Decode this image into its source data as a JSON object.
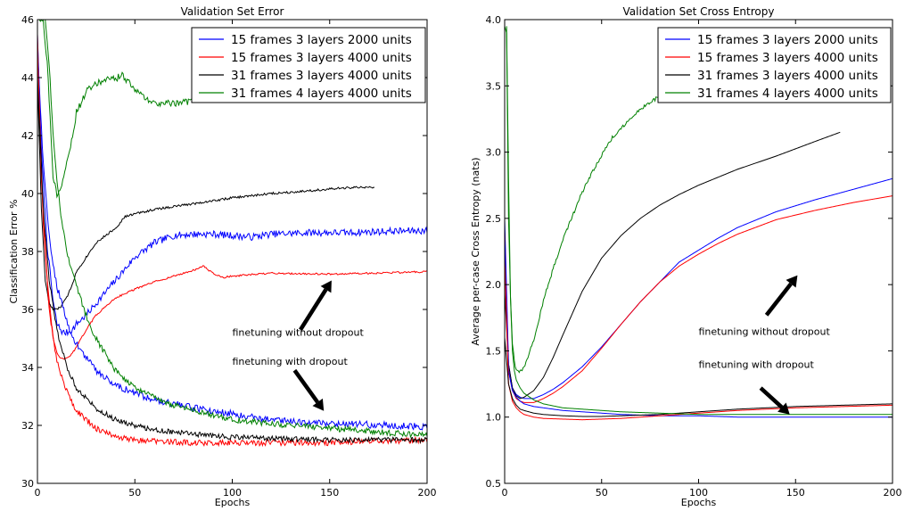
{
  "chart_data": [
    {
      "type": "line",
      "title": "Validation Set Error",
      "xlabel": "Epochs",
      "ylabel": "Classification Error %",
      "xlim": [
        0,
        200
      ],
      "ylim": [
        30,
        46
      ],
      "xticks": [
        "0",
        "50",
        "100",
        "150",
        "200"
      ],
      "yticks": [
        "30",
        "32",
        "34",
        "36",
        "38",
        "40",
        "42",
        "44",
        "46"
      ],
      "grid": false,
      "legend_position": "top-right",
      "series": [
        {
          "name": "15 frames 3 layers 2000 units",
          "color": "#0000ff",
          "noise": 0.12,
          "x": [
            0,
            2,
            5,
            8,
            10,
            13,
            15,
            18,
            20,
            25,
            30,
            40,
            50,
            60,
            70,
            80,
            90,
            100,
            110,
            120,
            140,
            160,
            180,
            200
          ],
          "y": [
            45.5,
            41.5,
            38.2,
            36.3,
            35.5,
            35.2,
            35.2,
            35.3,
            35.5,
            35.8,
            36.2,
            37.0,
            37.8,
            38.3,
            38.55,
            38.6,
            38.6,
            38.55,
            38.5,
            38.6,
            38.65,
            38.65,
            38.7,
            38.72
          ]
        },
        {
          "name": "15 frames 3 layers 4000 units",
          "color": "#ff0000",
          "noise": 0.03,
          "x": [
            0,
            2,
            5,
            8,
            10,
            12,
            15,
            18,
            20,
            25,
            30,
            40,
            50,
            60,
            70,
            80,
            85,
            90,
            95,
            100,
            120,
            150,
            200
          ],
          "y": [
            45.5,
            40.5,
            37.0,
            35.0,
            34.5,
            34.3,
            34.3,
            34.5,
            34.7,
            35.3,
            35.8,
            36.4,
            36.7,
            36.95,
            37.15,
            37.35,
            37.5,
            37.25,
            37.1,
            37.15,
            37.25,
            37.22,
            37.3
          ]
        },
        {
          "name": "31 frames 3 layers 4000 units",
          "color": "#000000",
          "noise": 0.04,
          "x": [
            0,
            2,
            4,
            6,
            8,
            10,
            12,
            15,
            18,
            20,
            25,
            30,
            40,
            45,
            50,
            60,
            70,
            80,
            90,
            100,
            120,
            140,
            160,
            173
          ],
          "y": [
            44.0,
            39.5,
            37.0,
            36.2,
            36.0,
            36.0,
            36.1,
            36.4,
            36.9,
            37.3,
            37.8,
            38.3,
            38.8,
            39.2,
            39.3,
            39.45,
            39.55,
            39.65,
            39.75,
            39.85,
            40.0,
            40.1,
            40.2,
            40.22
          ]
        },
        {
          "name": "31 frames 4 layers 4000 units",
          "color": "#008000",
          "noise": 0.12,
          "x": [
            0,
            3,
            5,
            7,
            8,
            10,
            12,
            15,
            18,
            20,
            25,
            30,
            35,
            40,
            43,
            46,
            50,
            55,
            60,
            65,
            70,
            75,
            80,
            85
          ],
          "y": [
            46.0,
            46.0,
            44.5,
            42.0,
            40.5,
            40.0,
            40.2,
            41.0,
            42.0,
            42.8,
            43.5,
            43.8,
            43.9,
            43.95,
            44.1,
            43.9,
            43.6,
            43.3,
            43.1,
            43.15,
            43.1,
            43.15,
            43.2,
            43.3
          ]
        },
        {
          "name": "",
          "color": "#0000ff",
          "noise": 0.12,
          "x": [
            0,
            3,
            6,
            10,
            15,
            20,
            30,
            40,
            50,
            60,
            70,
            80,
            90,
            100,
            110,
            120,
            140,
            160,
            180,
            200
          ],
          "y": [
            45.0,
            41.0,
            38.5,
            36.8,
            35.6,
            34.8,
            33.9,
            33.4,
            33.1,
            32.9,
            32.75,
            32.6,
            32.5,
            32.4,
            32.3,
            32.2,
            32.1,
            32.05,
            32.0,
            31.95
          ]
        },
        {
          "name": "",
          "color": "#ff0000",
          "noise": 0.1,
          "x": [
            0,
            3,
            6,
            10,
            15,
            20,
            30,
            40,
            50,
            60,
            80,
            100,
            120,
            150,
            170,
            200
          ],
          "y": [
            45.0,
            39.0,
            36.0,
            34.2,
            33.2,
            32.5,
            31.9,
            31.6,
            31.5,
            31.45,
            31.4,
            31.4,
            31.4,
            31.4,
            31.45,
            31.5
          ]
        },
        {
          "name": "",
          "color": "#000000",
          "noise": 0.09,
          "x": [
            0,
            3,
            6,
            10,
            15,
            20,
            30,
            40,
            50,
            60,
            80,
            100,
            120,
            150,
            170,
            200
          ],
          "y": [
            44.0,
            39.5,
            37.0,
            35.3,
            34.0,
            33.3,
            32.6,
            32.2,
            32.0,
            31.85,
            31.7,
            31.6,
            31.55,
            31.5,
            31.5,
            31.5
          ]
        },
        {
          "name": "",
          "color": "#008000",
          "noise": 0.1,
          "x": [
            4,
            6,
            8,
            10,
            12,
            15,
            20,
            25,
            30,
            40,
            50,
            60,
            70,
            80,
            90,
            100,
            120,
            140,
            160,
            180,
            200
          ],
          "y": [
            46.0,
            44.5,
            42.0,
            40.5,
            39.3,
            38.0,
            36.8,
            35.8,
            35.0,
            33.9,
            33.3,
            32.95,
            32.7,
            32.5,
            32.35,
            32.2,
            32.05,
            31.95,
            31.85,
            31.75,
            31.65
          ]
        }
      ],
      "annotations": [
        {
          "text": "finetuning without dropout",
          "x": 100,
          "y": 35.1
        },
        {
          "text": "finetuning with dropout",
          "x": 100,
          "y": 34.1
        }
      ],
      "arrows": [
        {
          "from": [
            135,
            35.3
          ],
          "to": [
            151,
            37.0
          ]
        },
        {
          "from": [
            132,
            33.9
          ],
          "to": [
            147,
            32.5
          ]
        }
      ]
    },
    {
      "type": "line",
      "title": "Validation Set Cross Entropy",
      "xlabel": "Epochs",
      "ylabel": "Average per-case Cross Entropy (nats)",
      "xlim": [
        0,
        200
      ],
      "ylim": [
        0.5,
        4.0
      ],
      "xticks": [
        "0",
        "50",
        "100",
        "150",
        "200"
      ],
      "yticks": [
        "0.5",
        "1.0",
        "1.5",
        "2.0",
        "2.5",
        "3.0",
        "3.5",
        "4.0"
      ],
      "grid": false,
      "legend_position": "top-right",
      "series": [
        {
          "name": "15 frames 3 layers 2000 units",
          "color": "#0000ff",
          "noise": 0,
          "x": [
            0,
            2,
            4,
            6,
            8,
            10,
            15,
            20,
            25,
            30,
            40,
            50,
            60,
            70,
            80,
            90,
            100,
            110,
            120,
            140,
            160,
            180,
            200
          ],
          "y": [
            2.5,
            1.4,
            1.22,
            1.17,
            1.15,
            1.14,
            1.14,
            1.17,
            1.21,
            1.26,
            1.38,
            1.53,
            1.7,
            1.87,
            2.02,
            2.17,
            2.26,
            2.35,
            2.43,
            2.55,
            2.64,
            2.72,
            2.8
          ]
        },
        {
          "name": "15 frames 3 layers 4000 units",
          "color": "#ff0000",
          "noise": 0,
          "x": [
            0,
            2,
            4,
            6,
            8,
            10,
            15,
            20,
            25,
            30,
            40,
            50,
            60,
            70,
            80,
            90,
            100,
            110,
            120,
            140,
            160,
            180,
            200
          ],
          "y": [
            2.4,
            1.35,
            1.2,
            1.14,
            1.12,
            1.11,
            1.11,
            1.14,
            1.18,
            1.23,
            1.35,
            1.52,
            1.7,
            1.87,
            2.02,
            2.14,
            2.23,
            2.31,
            2.38,
            2.49,
            2.56,
            2.62,
            2.67
          ]
        },
        {
          "name": "31 frames 3 layers 4000 units",
          "color": "#000000",
          "noise": 0,
          "x": [
            0,
            2,
            4,
            6,
            8,
            10,
            15,
            20,
            25,
            30,
            40,
            50,
            60,
            70,
            80,
            90,
            100,
            120,
            140,
            160,
            173
          ],
          "y": [
            1.95,
            1.4,
            1.22,
            1.16,
            1.14,
            1.15,
            1.2,
            1.3,
            1.45,
            1.62,
            1.95,
            2.2,
            2.37,
            2.5,
            2.6,
            2.68,
            2.75,
            2.87,
            2.97,
            3.08,
            3.15
          ]
        },
        {
          "name": "31 frames 4 layers 4000 units",
          "color": "#008000",
          "noise": 0.014,
          "x": [
            0,
            1,
            2,
            3,
            4,
            5,
            6,
            8,
            10,
            15,
            20,
            25,
            30,
            35,
            40,
            45,
            50,
            55,
            60,
            65,
            70,
            75,
            80,
            85
          ],
          "y": [
            3.95,
            3.9,
            2.5,
            1.9,
            1.55,
            1.42,
            1.35,
            1.34,
            1.38,
            1.58,
            1.88,
            2.12,
            2.34,
            2.52,
            2.7,
            2.84,
            2.98,
            3.1,
            3.18,
            3.26,
            3.32,
            3.38,
            3.42,
            3.46
          ]
        },
        {
          "name": "",
          "color": "#0000ff",
          "noise": 0,
          "x": [
            0,
            2,
            4,
            6,
            8,
            10,
            15,
            20,
            30,
            40,
            50,
            60,
            80,
            100,
            120,
            150,
            200
          ],
          "y": [
            2.4,
            1.35,
            1.2,
            1.15,
            1.12,
            1.1,
            1.08,
            1.07,
            1.05,
            1.04,
            1.03,
            1.02,
            1.01,
            1.01,
            1.0,
            1.0,
            1.0
          ]
        },
        {
          "name": "",
          "color": "#ff0000",
          "noise": 0,
          "x": [
            0,
            2,
            4,
            6,
            8,
            10,
            15,
            20,
            30,
            40,
            50,
            60,
            80,
            100,
            120,
            150,
            200
          ],
          "y": [
            2.2,
            1.25,
            1.12,
            1.07,
            1.04,
            1.02,
            1.0,
            0.99,
            0.985,
            0.98,
            0.985,
            0.99,
            1.01,
            1.03,
            1.05,
            1.07,
            1.09
          ]
        },
        {
          "name": "",
          "color": "#000000",
          "noise": 0,
          "x": [
            0,
            2,
            4,
            6,
            8,
            10,
            15,
            20,
            30,
            40,
            50,
            60,
            80,
            100,
            120,
            150,
            200
          ],
          "y": [
            1.6,
            1.25,
            1.14,
            1.09,
            1.06,
            1.05,
            1.03,
            1.02,
            1.01,
            1.005,
            1.005,
            1.01,
            1.02,
            1.04,
            1.06,
            1.08,
            1.1
          ]
        },
        {
          "name": "",
          "color": "#008000",
          "noise": 0,
          "x": [
            1,
            2,
            3,
            4,
            5,
            6,
            8,
            10,
            15,
            20,
            30,
            40,
            50,
            60,
            80,
            100,
            120,
            150,
            200
          ],
          "y": [
            3.95,
            2.8,
            1.9,
            1.5,
            1.35,
            1.28,
            1.22,
            1.18,
            1.13,
            1.1,
            1.07,
            1.06,
            1.05,
            1.04,
            1.03,
            1.02,
            1.02,
            1.02,
            1.02
          ]
        }
      ],
      "annotations": [
        {
          "text": "finetuning without dropout",
          "x": 100,
          "y": 1.62
        },
        {
          "text": "finetuning with dropout",
          "x": 100,
          "y": 1.37
        }
      ],
      "arrows": [
        {
          "from": [
            135,
            1.77
          ],
          "to": [
            151,
            2.07
          ]
        },
        {
          "from": [
            132,
            1.22
          ],
          "to": [
            147,
            1.02
          ]
        }
      ]
    }
  ]
}
